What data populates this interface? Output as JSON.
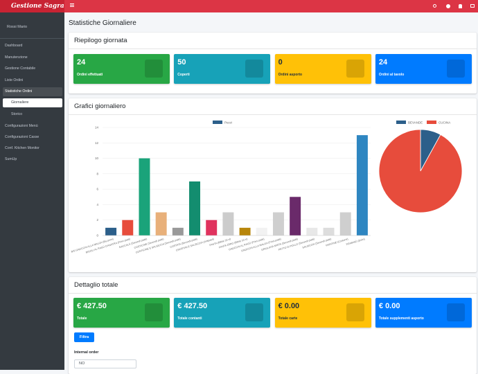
{
  "app": {
    "brand": "Gestione Sagra",
    "user": "Rossi Mario",
    "menu": [
      "Dashboard",
      "Manutenzione",
      "Gestione Contabile",
      "Liste Ordini",
      "Statistiche Ordini",
      "Giornaliere",
      "Storico",
      "Configurazioni Menù",
      "Configurazioni Casse",
      "Conf. Kitchen Monitor",
      "SumUp"
    ]
  },
  "page_title": "Statistiche Giornaliere",
  "summary": {
    "title": "Riepilogo giornata",
    "boxes": [
      {
        "value": 24,
        "label": "Ordini effettuati",
        "color": "#28a745"
      },
      {
        "value": 50,
        "label": "Coperti",
        "color": "#17a2b8"
      },
      {
        "value": 0,
        "label": "Ordini asporto",
        "color": "#ffc107"
      },
      {
        "value": 24,
        "label": "Ordini al tavolo",
        "color": "#007bff"
      }
    ]
  },
  "charts_title": "Grafici giornaliero",
  "chart_data": [
    {
      "type": "bar",
      "categories": [
        "BIS GNOCCHI ALLA MALGA (Bis primi)",
        "BIGOLI AL RAGÙ D'ANATRA (Primi piatti)",
        "BACCALÀ (Secondi piatti)",
        "COSTICINE (Secondi piatti)",
        "COSTICINE E SALSICCIA (Secondi piatti)",
        "COSTATA (Secondi piatti)",
        "CROSTINI E SALSICCIA (Antipasti)",
        "FANTA (Bibite 33 cl)",
        "FANTA ZERO (Bibite 33 cl)",
        "GNOCCHI AL RAGÙ (Primi piatti)",
        "GNOCCHI ALLA MALGA (Primi piatti)",
        "GRIGLIATA MISTA (Secondi piatti)",
        "PETTO DI POLLO (Secondi piatti)",
        "SALSICCIA (Secondi piatti)",
        "PATATINE (Contorni)",
        "TIRAMISÙ (Dolci)"
      ],
      "series": [
        {
          "name": "Pezzi",
          "color": "#2c5f8a",
          "values": [
            1,
            2,
            10,
            3,
            1,
            7,
            2,
            3,
            1,
            1,
            3,
            5,
            1,
            1,
            3,
            13
          ]
        }
      ],
      "colors": [
        "#2c5f8a",
        "#e74c3c",
        "#1aa37a",
        "#e8b07a",
        "#999999",
        "#138d6f",
        "#e0335e",
        "#cccccc",
        "#b8860b",
        "#f2f2f2",
        "#cfcfcf",
        "#6a2a6a",
        "#e8e8e8",
        "#dddddd",
        "#cfcfcf",
        "#2e86c1"
      ],
      "ylim": [
        0,
        14
      ],
      "yticks": [
        0,
        2,
        4,
        6,
        8,
        10,
        12,
        14
      ],
      "grid": true
    },
    {
      "type": "pie",
      "categories": [
        "BEVANDE",
        "CUCINA"
      ],
      "values": [
        8,
        92
      ],
      "colors": [
        "#2c5f8a",
        "#e74c3c"
      ]
    }
  ],
  "totals": {
    "title": "Dettaglio totale",
    "boxes": [
      {
        "value": "€ 427.50",
        "label": "Totale",
        "color": "#28a745"
      },
      {
        "value": "€ 427.50",
        "label": "Totale contanti",
        "color": "#17a2b8"
      },
      {
        "value": "€ 0.00",
        "label": "Totale carte",
        "color": "#ffc107"
      },
      {
        "value": "€ 0.00",
        "label": "Totale supplementi asporto",
        "color": "#007bff"
      }
    ]
  },
  "filter": {
    "button": "Filtra",
    "label": "Internal order",
    "select": "NO"
  }
}
